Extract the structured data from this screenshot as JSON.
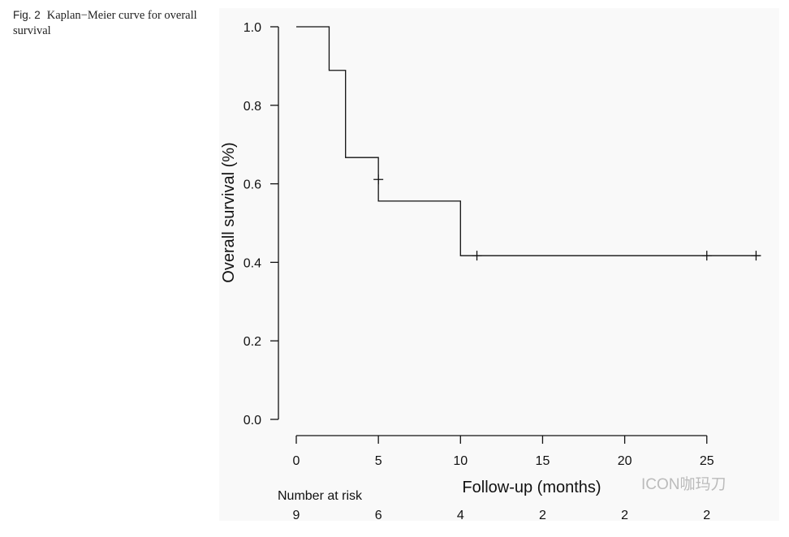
{
  "caption": {
    "label": "Fig. 2",
    "text": "Kaplan−Meier curve for overall survival"
  },
  "chart_data": {
    "type": "line",
    "subtype": "kaplan-meier-step",
    "xlabel": "Follow-up (months)",
    "ylabel": "Overall survival (%)",
    "xlim": [
      0,
      28
    ],
    "ylim": [
      0,
      1
    ],
    "xticks": [
      0,
      5,
      10,
      15,
      20,
      25
    ],
    "yticks": [
      "0.0",
      "0.2",
      "0.4",
      "0.6",
      "0.8",
      "1.0"
    ],
    "grid": false,
    "steps": [
      {
        "x": 0,
        "y": 1.0
      },
      {
        "x": 2,
        "y": 0.889
      },
      {
        "x": 3,
        "y": 0.667
      },
      {
        "x": 5,
        "y": 0.556
      },
      {
        "x": 10,
        "y": 0.417
      },
      {
        "x": 28.2,
        "y": 0.417
      }
    ],
    "censored": [
      {
        "x": 5,
        "y": 0.611
      },
      {
        "x": 11,
        "y": 0.417
      },
      {
        "x": 25,
        "y": 0.417
      },
      {
        "x": 28,
        "y": 0.417
      }
    ],
    "risk_table": {
      "label": "Number at risk",
      "times": [
        0,
        5,
        10,
        15,
        20,
        25
      ],
      "counts": [
        "9",
        "6",
        "4",
        "2",
        "2",
        "2"
      ]
    }
  },
  "watermark": "ICON咖玛刀",
  "colors": {
    "line": "#111111",
    "background": "#f9f9f9"
  }
}
